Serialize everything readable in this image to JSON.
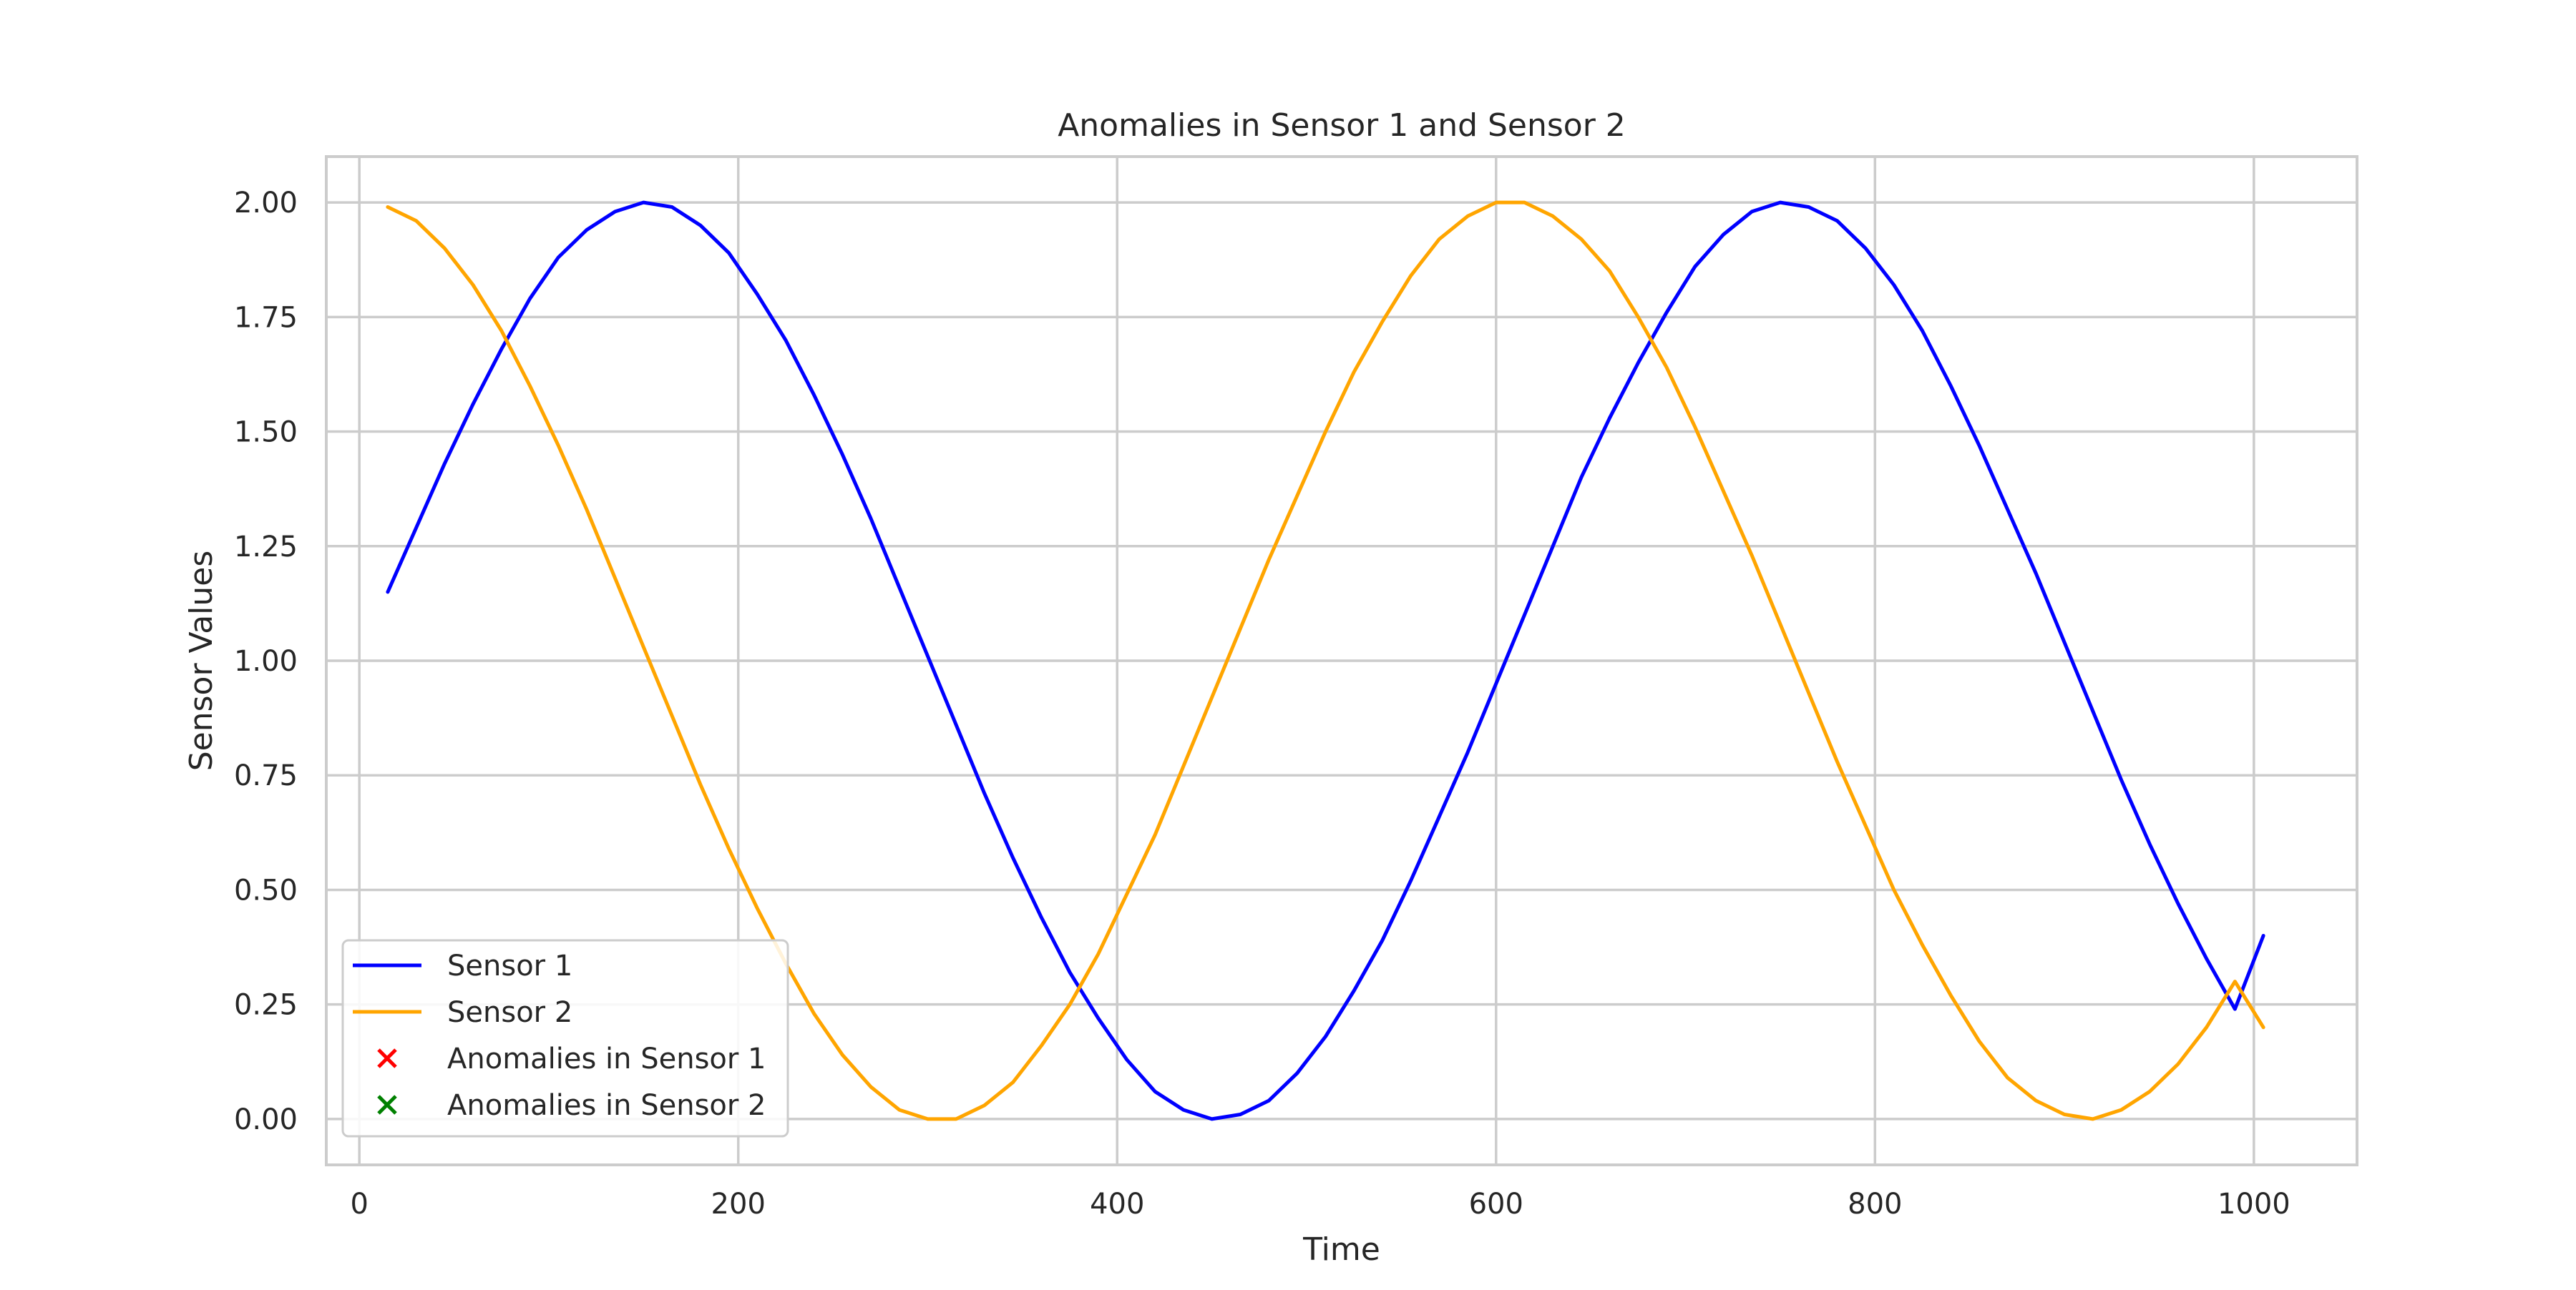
{
  "chart_data": {
    "type": "line",
    "title": "Anomalies in Sensor 1 and Sensor 2",
    "xlabel": "Time",
    "ylabel": "Sensor Values",
    "xlim": [
      -17.45,
      1054.45
    ],
    "ylim": [
      -0.1,
      2.1
    ],
    "xticks": [
      0,
      200,
      400,
      600,
      800,
      1000
    ],
    "xtick_labels": [
      "0",
      "200",
      "400",
      "600",
      "800",
      "1000"
    ],
    "yticks": [
      0,
      0.25,
      0.5,
      0.75,
      1.0,
      1.25,
      1.5,
      1.75,
      2.0
    ],
    "ytick_labels": [
      "0.00",
      "0.25",
      "0.50",
      "0.75",
      "1.00",
      "1.25",
      "1.50",
      "1.75",
      "2.00"
    ],
    "grid": true,
    "legend_position": "lower-left",
    "series": [
      {
        "name": "Sensor 1",
        "color": "#0000ff",
        "kind": "line",
        "x": [
          15,
          30,
          45,
          60,
          75,
          90,
          105,
          120,
          135,
          150,
          165,
          180,
          195,
          210,
          225,
          240,
          255,
          270,
          285,
          300,
          315,
          330,
          345,
          360,
          375,
          390,
          405,
          420,
          435,
          450,
          465,
          480,
          495,
          510,
          525,
          540,
          555,
          570,
          585,
          600,
          615,
          630,
          645,
          660,
          675,
          690,
          705,
          720,
          735,
          750,
          765,
          780,
          795,
          810,
          825,
          840,
          855,
          870,
          885,
          900,
          915,
          930,
          945,
          960,
          975,
          990,
          1005
        ],
        "values": [
          1.15,
          1.29,
          1.43,
          1.56,
          1.68,
          1.79,
          1.88,
          1.94,
          1.98,
          2.0,
          1.99,
          1.95,
          1.89,
          1.8,
          1.7,
          1.58,
          1.45,
          1.31,
          1.16,
          1.01,
          0.86,
          0.71,
          0.57,
          0.44,
          0.32,
          0.22,
          0.13,
          0.06,
          0.02,
          0.0,
          0.01,
          0.04,
          0.1,
          0.18,
          0.28,
          0.39,
          0.52,
          0.66,
          0.8,
          0.95,
          1.1,
          1.25,
          1.4,
          1.53,
          1.65,
          1.76,
          1.86,
          1.93,
          1.98,
          2.0,
          1.99,
          1.96,
          1.9,
          1.82,
          1.72,
          1.6,
          1.47,
          1.33,
          1.19,
          1.04,
          0.89,
          0.74,
          0.6,
          0.47,
          0.35,
          0.24,
          0.4
        ]
      },
      {
        "name": "Sensor 2",
        "color": "#ffa500",
        "kind": "line",
        "x": [
          15,
          30,
          45,
          60,
          75,
          90,
          105,
          120,
          135,
          150,
          165,
          180,
          195,
          210,
          225,
          240,
          255,
          270,
          285,
          300,
          315,
          330,
          345,
          360,
          375,
          390,
          405,
          420,
          435,
          450,
          465,
          480,
          495,
          510,
          525,
          540,
          555,
          570,
          585,
          600,
          615,
          630,
          645,
          660,
          675,
          690,
          705,
          720,
          735,
          750,
          765,
          780,
          795,
          810,
          825,
          840,
          855,
          870,
          885,
          900,
          915,
          930,
          945,
          960,
          975,
          990,
          1005
        ],
        "values": [
          1.99,
          1.96,
          1.9,
          1.82,
          1.72,
          1.6,
          1.47,
          1.33,
          1.18,
          1.03,
          0.88,
          0.73,
          0.59,
          0.46,
          0.34,
          0.23,
          0.14,
          0.07,
          0.02,
          0.0,
          0.0,
          0.03,
          0.08,
          0.16,
          0.25,
          0.36,
          0.49,
          0.62,
          0.77,
          0.92,
          1.07,
          1.22,
          1.36,
          1.5,
          1.63,
          1.74,
          1.84,
          1.92,
          1.97,
          2.0,
          2.0,
          1.97,
          1.92,
          1.85,
          1.75,
          1.64,
          1.51,
          1.37,
          1.23,
          1.08,
          0.93,
          0.78,
          0.64,
          0.5,
          0.38,
          0.27,
          0.17,
          0.09,
          0.04,
          0.01,
          0.0,
          0.02,
          0.06,
          0.12,
          0.2,
          0.3,
          0.2
        ]
      },
      {
        "name": "Anomalies in Sensor 1",
        "color": "#ff0000",
        "kind": "marker",
        "x": [],
        "values": []
      },
      {
        "name": "Anomalies in Sensor 2",
        "color": "#008000",
        "kind": "marker",
        "x": [],
        "values": []
      }
    ]
  }
}
